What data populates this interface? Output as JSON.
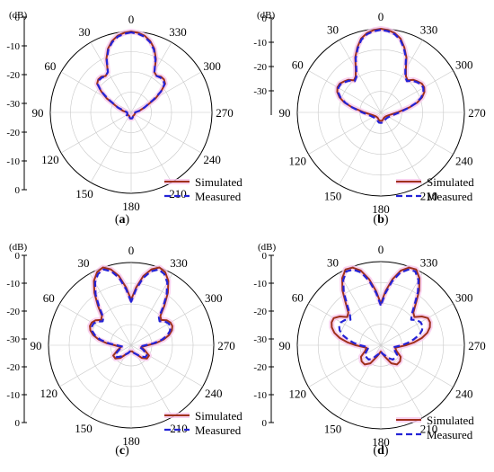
{
  "chart_data": [
    {
      "type": "polar",
      "panel_label": "a",
      "r_unit_label": "(dB)",
      "r_tick_labels": [
        "0",
        "-10",
        "-20",
        "-30",
        "-20",
        "-10",
        "0"
      ],
      "theta_tick_labels": [
        "0",
        "30",
        "60",
        "90",
        "120",
        "150",
        "180",
        "210",
        "240",
        "270",
        "300",
        "330"
      ],
      "theta_label_angles_deg": [
        0,
        30,
        60,
        90,
        120,
        150,
        180,
        210,
        240,
        270,
        300,
        330
      ],
      "rlim_db": [
        -40,
        0
      ],
      "lobe_spec": [
        [
          0,
          0,
          22
        ],
        [
          -42,
          -16,
          16
        ],
        [
          -48,
          -25,
          12
        ],
        [
          42,
          -16,
          16
        ],
        [
          48,
          -25,
          12
        ]
      ],
      "series": [
        {
          "name": "Simulated",
          "angle_deg": [
            0,
            5,
            10,
            15,
            20,
            25,
            30,
            35,
            40,
            45,
            50,
            55,
            60,
            70,
            80,
            90,
            110,
            130,
            150,
            170,
            180,
            190,
            210,
            230,
            250,
            270,
            280,
            290,
            300,
            305,
            310,
            315,
            320,
            325,
            330,
            335,
            340,
            345,
            350,
            355
          ],
          "db": [
            0,
            -0.5,
            -1.5,
            -3.5,
            -6.5,
            -11,
            -17,
            -18,
            -17,
            -17,
            -18,
            -22,
            -26,
            -33,
            -36,
            -38,
            -38,
            -38,
            -38,
            -37,
            -37,
            -37,
            -38,
            -38,
            -38,
            -38,
            -36,
            -33,
            -26,
            -22,
            -18,
            -17,
            -17,
            -18,
            -17,
            -11,
            -6.5,
            -3.5,
            -1.5,
            -0.5
          ]
        },
        {
          "name": "Measured",
          "angle_deg": [
            0,
            5,
            10,
            15,
            20,
            25,
            30,
            35,
            40,
            45,
            50,
            55,
            60,
            70,
            80,
            90,
            110,
            130,
            150,
            170,
            180,
            190,
            210,
            230,
            250,
            270,
            280,
            290,
            300,
            305,
            310,
            315,
            320,
            325,
            330,
            335,
            340,
            345,
            350,
            355
          ],
          "db": [
            -0.5,
            -1,
            -2,
            -4,
            -7,
            -11.5,
            -17,
            -18,
            -17.5,
            -17.5,
            -18.5,
            -22,
            -27,
            -33,
            -37,
            -38,
            -38,
            -37,
            -38,
            -37,
            -37,
            -37,
            -38,
            -38,
            -38,
            -38,
            -36,
            -33,
            -27,
            -22,
            -18.5,
            -17.5,
            -17.5,
            -18,
            -17,
            -11.5,
            -7,
            -4,
            -2,
            -1
          ]
        }
      ],
      "legend": [
        "Simulated",
        "Measured"
      ],
      "legend_placement": "bottom-right"
    },
    {
      "type": "polar",
      "panel_label": "b",
      "r_unit_label": "(dB)",
      "r_tick_labels": [
        "0",
        "-10",
        "-20",
        "-30"
      ],
      "theta_tick_labels": [
        "0",
        "30",
        "60",
        "90",
        "120",
        "150",
        "180",
        "210",
        "240",
        "270",
        "300",
        "330"
      ],
      "theta_label_angles_deg": [
        0,
        30,
        60,
        90,
        120,
        150,
        180,
        210,
        240,
        270,
        300,
        330
      ],
      "rlim_db": [
        -40,
        0
      ],
      "lobe_spec": [
        [
          0,
          0,
          22
        ],
        [
          -58,
          -16,
          20
        ],
        [
          58,
          -16,
          20
        ]
      ],
      "series": [
        {
          "name": "Simulated",
          "angle_deg": [
            0,
            5,
            10,
            15,
            20,
            25,
            30,
            35,
            40,
            45,
            50,
            55,
            60,
            65,
            70,
            75,
            80,
            90,
            110,
            130,
            150,
            170,
            180,
            190,
            210,
            230,
            250,
            270,
            280,
            285,
            290,
            295,
            300,
            305,
            310,
            315,
            320,
            325,
            330,
            335,
            340,
            345,
            350,
            355
          ],
          "db": [
            0,
            -0.5,
            -1.5,
            -3.5,
            -7,
            -11,
            -16,
            -19,
            -20,
            -18,
            -17,
            -16,
            -16,
            -17,
            -19,
            -22,
            -26,
            -32,
            -36,
            -37,
            -37,
            -36,
            -36,
            -36,
            -37,
            -37,
            -36,
            -32,
            -26,
            -22,
            -19,
            -17,
            -16,
            -16,
            -17,
            -18,
            -20,
            -19,
            -16,
            -11,
            -7,
            -3.5,
            -1.5,
            -0.5
          ]
        },
        {
          "name": "Measured",
          "angle_deg": [
            0,
            5,
            10,
            15,
            20,
            25,
            30,
            35,
            40,
            45,
            50,
            55,
            60,
            65,
            70,
            75,
            80,
            90,
            110,
            130,
            150,
            170,
            180,
            190,
            210,
            230,
            250,
            270,
            280,
            285,
            290,
            295,
            300,
            305,
            310,
            315,
            320,
            325,
            330,
            335,
            340,
            345,
            350,
            355
          ],
          "db": [
            -0.5,
            -1,
            -2,
            -4,
            -7.5,
            -11.5,
            -16.5,
            -19.5,
            -20.5,
            -18.5,
            -17.5,
            -16.5,
            -16.5,
            -17.5,
            -19.5,
            -22.5,
            -26,
            -31,
            -35,
            -36,
            -36,
            -35,
            -35,
            -35,
            -36,
            -36,
            -35,
            -31,
            -26,
            -22.5,
            -19.5,
            -17.5,
            -16.5,
            -16.5,
            -17.5,
            -18.5,
            -20.5,
            -19.5,
            -16.5,
            -11.5,
            -7.5,
            -4,
            -2,
            -1
          ]
        }
      ],
      "legend": [
        "Simulated",
        "Measured"
      ],
      "legend_placement": "bottom-right"
    },
    {
      "type": "polar",
      "panel_label": "c",
      "r_unit_label": "(dB)",
      "r_tick_labels": [
        "0",
        "-10",
        "-20",
        "-30",
        "-20",
        "-10",
        "0"
      ],
      "theta_tick_labels": [
        "0",
        "30",
        "60",
        "90",
        "120",
        "150",
        "180",
        "210",
        "240",
        "270",
        "300",
        "330"
      ],
      "theta_label_angles_deg": [
        0,
        30,
        60,
        90,
        120,
        150,
        180,
        210,
        240,
        270,
        300,
        330
      ],
      "rlim_db": [
        -40,
        0
      ],
      "lobe_spec": [
        [
          -22,
          0,
          16
        ],
        [
          22,
          0,
          16
        ],
        [
          -72,
          -18,
          16
        ],
        [
          72,
          -18,
          16
        ],
        [
          -132,
          -30,
          14
        ],
        [
          132,
          -30,
          14
        ]
      ],
      "series": [
        {
          "name": "Simulated",
          "angle_deg": [
            0,
            5,
            10,
            15,
            20,
            25,
            30,
            35,
            40,
            45,
            50,
            55,
            60,
            65,
            70,
            75,
            80,
            85,
            90,
            100,
            110,
            120,
            130,
            140,
            150,
            160,
            170,
            180,
            190,
            200,
            210,
            220,
            230,
            240,
            250,
            260,
            270,
            275,
            280,
            285,
            290,
            295,
            300,
            305,
            310,
            315,
            320,
            325,
            330,
            335,
            340,
            345,
            350,
            355
          ],
          "db": [
            -18,
            -12,
            -6,
            -2,
            0,
            -1,
            -4,
            -9,
            -15,
            -20,
            -21,
            -19,
            -18,
            -18,
            -19,
            -21,
            -24,
            -28,
            -32,
            -35,
            -33,
            -30,
            -30,
            -32,
            -35,
            -36,
            -37,
            -37,
            -37,
            -36,
            -35,
            -32,
            -30,
            -30,
            -33,
            -35,
            -32,
            -28,
            -24,
            -21,
            -19,
            -18,
            -18,
            -19,
            -21,
            -20,
            -15,
            -9,
            -4,
            -1,
            0,
            -2,
            -6,
            -12
          ]
        },
        {
          "name": "Measured",
          "angle_deg": [
            0,
            5,
            10,
            15,
            20,
            25,
            30,
            35,
            40,
            45,
            50,
            55,
            60,
            65,
            70,
            75,
            80,
            85,
            90,
            100,
            110,
            120,
            130,
            140,
            150,
            160,
            170,
            180,
            190,
            200,
            210,
            220,
            230,
            240,
            250,
            260,
            270,
            275,
            280,
            285,
            290,
            295,
            300,
            305,
            310,
            315,
            320,
            325,
            330,
            335,
            340,
            345,
            350,
            355
          ],
          "db": [
            -19,
            -13,
            -7,
            -3,
            -1,
            -2,
            -5,
            -10,
            -16,
            -21,
            -22,
            -20,
            -19,
            -19,
            -20,
            -22,
            -25,
            -29,
            -33,
            -36,
            -34,
            -31,
            -31,
            -33,
            -35,
            -36,
            -37,
            -37,
            -37,
            -36,
            -35,
            -33,
            -31,
            -31,
            -34,
            -36,
            -33,
            -29,
            -25,
            -22,
            -20,
            -19,
            -19,
            -20,
            -22,
            -21,
            -16,
            -10,
            -5,
            -2,
            -1,
            -3,
            -7,
            -13
          ]
        }
      ],
      "legend": [
        "Simulated",
        "Measured"
      ],
      "legend_placement": "bottom-right"
    },
    {
      "type": "polar",
      "panel_label": "d",
      "r_unit_label": "(dB)",
      "r_tick_labels": [
        "0",
        "-10",
        "-20",
        "-30",
        "-20",
        "-10",
        "0"
      ],
      "theta_tick_labels": [
        "0",
        "30",
        "60",
        "90",
        "120",
        "150",
        "180",
        "210",
        "240",
        "270",
        "300",
        "330"
      ],
      "theta_label_angles_deg": [
        0,
        30,
        60,
        90,
        120,
        150,
        180,
        210,
        240,
        270,
        300,
        330
      ],
      "rlim_db": [
        -40,
        0
      ],
      "lobe_spec": [
        [
          -24,
          0,
          16
        ],
        [
          24,
          0,
          16
        ],
        [
          -72,
          -14,
          18
        ],
        [
          72,
          -14,
          18
        ],
        [
          -138,
          -28,
          16
        ],
        [
          138,
          -28,
          16
        ]
      ],
      "series": [
        {
          "name": "Simulated",
          "angle_deg": [
            0,
            5,
            10,
            15,
            20,
            25,
            30,
            35,
            40,
            45,
            50,
            55,
            60,
            65,
            70,
            75,
            80,
            85,
            90,
            100,
            110,
            120,
            130,
            140,
            150,
            160,
            170,
            180,
            190,
            200,
            210,
            220,
            230,
            240,
            250,
            260,
            270,
            275,
            280,
            285,
            290,
            295,
            300,
            305,
            310,
            315,
            320,
            325,
            330,
            335,
            340,
            345,
            350,
            355
          ],
          "db": [
            -20,
            -14,
            -8,
            -3,
            -0.5,
            0,
            -3,
            -8,
            -14,
            -18,
            -19,
            -16,
            -14,
            -14,
            -15,
            -17,
            -20,
            -24,
            -28,
            -33,
            -32,
            -29,
            -28,
            -28,
            -30,
            -34,
            -36,
            -37,
            -36,
            -34,
            -30,
            -28,
            -28,
            -29,
            -32,
            -33,
            -28,
            -24,
            -20,
            -17,
            -15,
            -14,
            -14,
            -16,
            -19,
            -18,
            -14,
            -8,
            -3,
            0,
            -0.5,
            -3,
            -8,
            -14
          ]
        },
        {
          "name": "Measured",
          "angle_deg": [
            0,
            5,
            10,
            15,
            20,
            25,
            30,
            35,
            40,
            45,
            50,
            55,
            60,
            65,
            70,
            75,
            80,
            85,
            90,
            100,
            110,
            120,
            130,
            140,
            150,
            160,
            170,
            180,
            190,
            200,
            210,
            220,
            230,
            240,
            250,
            260,
            270,
            275,
            280,
            285,
            290,
            295,
            300,
            305,
            310,
            315,
            320,
            325,
            330,
            335,
            340,
            345,
            350,
            355
          ],
          "db": [
            -21,
            -15,
            -9,
            -4,
            -1.5,
            -1,
            -4,
            -9,
            -15,
            -19,
            -21,
            -19,
            -18,
            -18,
            -19,
            -21,
            -24,
            -27,
            -30,
            -34,
            -33,
            -31,
            -31,
            -31,
            -33,
            -35,
            -36,
            -37,
            -36,
            -35,
            -33,
            -31,
            -31,
            -31,
            -33,
            -34,
            -30,
            -27,
            -24,
            -21,
            -19,
            -18,
            -18,
            -19,
            -21,
            -19,
            -15,
            -9,
            -4,
            -1,
            -1.5,
            -4,
            -9,
            -15
          ]
        }
      ],
      "legend": [
        "Simulated",
        "Measured"
      ],
      "legend_placement": "bottom-right"
    }
  ],
  "colors": {
    "simulated": "#a0301c",
    "simulated_halo": "#f7c8ec",
    "measured": "#2323d6",
    "grid": "#c8c8c8"
  }
}
